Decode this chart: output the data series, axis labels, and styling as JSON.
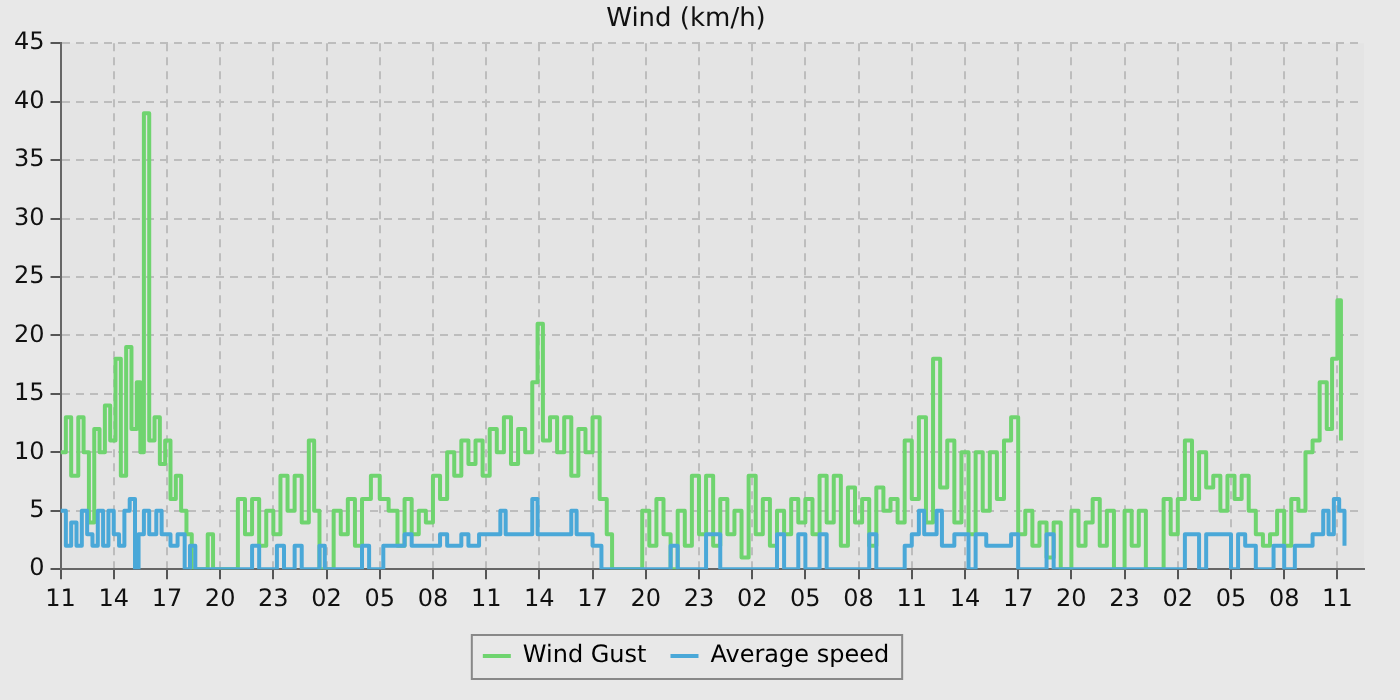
{
  "chart_data": {
    "type": "step",
    "title": "Wind (km/h)",
    "xlim": [
      "--05-01T11:00",
      "--05-04T12:30"
    ],
    "ylim": [
      0,
      45
    ],
    "xticks": [
      {
        "value": "--05-01T11:00",
        "label": "11"
      },
      {
        "value": "--05-01T14:00",
        "label": "14"
      },
      {
        "value": "--05-01T17:00",
        "label": "17"
      },
      {
        "value": "--05-01T20:00",
        "label": "20"
      },
      {
        "value": "--05-01T23:00",
        "label": "23"
      },
      {
        "value": "--05-02T02:00",
        "label": "02"
      },
      {
        "value": "--05-02T05:00",
        "label": "05"
      },
      {
        "value": "--05-02T08:00",
        "label": "08"
      },
      {
        "value": "--05-02T11:00",
        "label": "11"
      },
      {
        "value": "--05-02T14:00",
        "label": "14"
      },
      {
        "value": "--05-02T17:00",
        "label": "17"
      },
      {
        "value": "--05-02T20:00",
        "label": "20"
      },
      {
        "value": "--05-02T23:00",
        "label": "23"
      },
      {
        "value": "--05-03T02:00",
        "label": "02"
      },
      {
        "value": "--05-03T05:00",
        "label": "05"
      },
      {
        "value": "--05-03T08:00",
        "label": "08"
      },
      {
        "value": "--05-03T11:00",
        "label": "11"
      },
      {
        "value": "--05-03T14:00",
        "label": "14"
      },
      {
        "value": "--05-03T17:00",
        "label": "17"
      },
      {
        "value": "--05-03T20:00",
        "label": "20"
      },
      {
        "value": "--05-03T23:00",
        "label": "23"
      },
      {
        "value": "--05-04T02:00",
        "label": "02"
      },
      {
        "value": "--05-04T05:00",
        "label": "05"
      },
      {
        "value": "--05-04T08:00",
        "label": "08"
      },
      {
        "value": "--05-04T11:00",
        "label": "11"
      }
    ],
    "yticks": [
      0,
      5,
      10,
      15,
      20,
      25,
      30,
      35,
      40,
      45
    ],
    "grid": true,
    "legend": "bottom",
    "marker": "none",
    "line_style": "solid",
    "series": [
      {
        "name": "Wind Gust",
        "color": "#6fd46f",
        "x": [
          "--05-01T11:00",
          "--05-01T11:18",
          "--05-01T11:36",
          "--05-01T12:00",
          "--05-01T12:18",
          "--05-01T12:36",
          "--05-01T12:54",
          "--05-01T13:12",
          "--05-01T13:30",
          "--05-01T13:48",
          "--05-01T14:06",
          "--05-01T14:24",
          "--05-01T14:42",
          "--05-01T15:00",
          "--05-01T15:18",
          "--05-01T15:30",
          "--05-01T15:42",
          "--05-01T16:00",
          "--05-01T16:18",
          "--05-01T16:36",
          "--05-01T16:54",
          "--05-01T17:12",
          "--05-01T17:30",
          "--05-01T17:48",
          "--05-01T18:06",
          "--05-01T18:24",
          "--05-01T19:18",
          "--05-01T19:36",
          "--05-01T21:00",
          "--05-01T21:24",
          "--05-01T21:48",
          "--05-01T22:12",
          "--05-01T22:36",
          "--05-01T23:00",
          "--05-01T23:24",
          "--05-01T23:48",
          "--05-02T00:12",
          "--05-02T00:36",
          "--05-02T01:00",
          "--05-02T01:18",
          "--05-02T01:36",
          "--05-02T02:24",
          "--05-02T02:48",
          "--05-02T03:12",
          "--05-02T03:36",
          "--05-02T04:00",
          "--05-02T04:30",
          "--05-02T05:00",
          "--05-02T05:30",
          "--05-02T06:00",
          "--05-02T06:24",
          "--05-02T06:48",
          "--05-02T07:12",
          "--05-02T07:36",
          "--05-02T08:00",
          "--05-02T08:24",
          "--05-02T08:48",
          "--05-02T09:12",
          "--05-02T09:36",
          "--05-02T10:00",
          "--05-02T10:24",
          "--05-02T10:48",
          "--05-02T11:12",
          "--05-02T11:36",
          "--05-02T12:00",
          "--05-02T12:24",
          "--05-02T12:48",
          "--05-02T13:12",
          "--05-02T13:36",
          "--05-02T13:54",
          "--05-02T14:12",
          "--05-02T14:36",
          "--05-02T15:00",
          "--05-02T15:24",
          "--05-02T15:48",
          "--05-02T16:12",
          "--05-02T16:36",
          "--05-02T17:00",
          "--05-02T17:24",
          "--05-02T17:48",
          "--05-02T18:06",
          "--05-02T19:48",
          "--05-02T20:12",
          "--05-02T20:36",
          "--05-02T21:00",
          "--05-02T21:24",
          "--05-02T21:48",
          "--05-02T22:12",
          "--05-02T22:36",
          "--05-02T23:00",
          "--05-02T23:24",
          "--05-02T23:48",
          "--05-03T00:12",
          "--05-03T00:36",
          "--05-03T01:00",
          "--05-03T01:24",
          "--05-03T01:48",
          "--05-03T02:12",
          "--05-03T02:36",
          "--05-03T03:00",
          "--05-03T03:24",
          "--05-03T03:48",
          "--05-03T04:12",
          "--05-03T04:36",
          "--05-03T05:00",
          "--05-03T05:24",
          "--05-03T05:48",
          "--05-03T06:12",
          "--05-03T06:36",
          "--05-03T07:00",
          "--05-03T07:24",
          "--05-03T07:48",
          "--05-03T08:12",
          "--05-03T08:36",
          "--05-03T09:00",
          "--05-03T09:24",
          "--05-03T09:48",
          "--05-03T10:12",
          "--05-03T10:36",
          "--05-03T11:00",
          "--05-03T11:24",
          "--05-03T11:48",
          "--05-03T12:12",
          "--05-03T12:36",
          "--05-03T13:00",
          "--05-03T13:24",
          "--05-03T13:48",
          "--05-03T14:12",
          "--05-03T14:36",
          "--05-03T15:00",
          "--05-03T15:24",
          "--05-03T15:48",
          "--05-03T16:12",
          "--05-03T16:36",
          "--05-03T17:00",
          "--05-03T17:24",
          "--05-03T17:48",
          "--05-03T18:12",
          "--05-03T18:36",
          "--05-03T19:00",
          "--05-03T19:24",
          "--05-03T20:00",
          "--05-03T20:24",
          "--05-03T20:48",
          "--05-03T21:12",
          "--05-03T21:36",
          "--05-03T22:00",
          "--05-03T22:24",
          "--05-03T23:00",
          "--05-03T23:24",
          "--05-03T23:48",
          "--05-04T00:12",
          "--05-04T01:12",
          "--05-04T01:36",
          "--05-04T02:00",
          "--05-04T02:24",
          "--05-04T02:48",
          "--05-04T03:12",
          "--05-04T03:36",
          "--05-04T04:00",
          "--05-04T04:24",
          "--05-04T04:48",
          "--05-04T05:12",
          "--05-04T05:36",
          "--05-04T06:00",
          "--05-04T06:24",
          "--05-04T06:48",
          "--05-04T07:12",
          "--05-04T07:36",
          "--05-04T08:00",
          "--05-04T08:24",
          "--05-04T08:48",
          "--05-04T09:12",
          "--05-04T09:36",
          "--05-04T10:00",
          "--05-04T10:24",
          "--05-04T10:42",
          "--05-04T11:00",
          "--05-04T11:12"
        ],
        "values": [
          10,
          13,
          8,
          13,
          10,
          4,
          12,
          10,
          14,
          11,
          18,
          8,
          19,
          12,
          16,
          10,
          39,
          11,
          13,
          9,
          11,
          6,
          8,
          5,
          3,
          0,
          3,
          0,
          6,
          3,
          6,
          2,
          5,
          3,
          8,
          5,
          8,
          4,
          11,
          5,
          0,
          5,
          3,
          6,
          2,
          6,
          8,
          6,
          5,
          2,
          6,
          3,
          5,
          4,
          8,
          6,
          10,
          8,
          11,
          9,
          11,
          8,
          12,
          10,
          13,
          9,
          12,
          10,
          16,
          21,
          11,
          13,
          10,
          13,
          8,
          12,
          10,
          13,
          6,
          3,
          0,
          5,
          2,
          6,
          3,
          0,
          5,
          2,
          8,
          3,
          8,
          2,
          6,
          3,
          5,
          1,
          8,
          3,
          6,
          2,
          5,
          3,
          6,
          4,
          6,
          3,
          8,
          4,
          8,
          2,
          7,
          4,
          6,
          2,
          7,
          5,
          6,
          4,
          11,
          6,
          13,
          4,
          18,
          7,
          11,
          4,
          10,
          3,
          10,
          5,
          10,
          6,
          11,
          13,
          3,
          5,
          2,
          4,
          1,
          4,
          0,
          5,
          2,
          4,
          6,
          2,
          5,
          0,
          5,
          2,
          5,
          0,
          6,
          3,
          6,
          11,
          6,
          10,
          7,
          8,
          5,
          8,
          6,
          8,
          5,
          3,
          2,
          3,
          5,
          2,
          6,
          5,
          10,
          11,
          16,
          12,
          18,
          23,
          11
        ]
      },
      {
        "name": "Average speed",
        "color": "#4aa8d8",
        "x": [
          "--05-01T11:00",
          "--05-01T11:18",
          "--05-01T11:36",
          "--05-01T11:54",
          "--05-01T12:12",
          "--05-01T12:30",
          "--05-01T12:48",
          "--05-01T13:06",
          "--05-01T13:24",
          "--05-01T13:42",
          "--05-01T14:00",
          "--05-01T14:18",
          "--05-01T14:36",
          "--05-01T14:54",
          "--05-01T15:12",
          "--05-01T15:24",
          "--05-01T15:42",
          "--05-01T16:00",
          "--05-01T16:24",
          "--05-01T16:42",
          "--05-01T17:12",
          "--05-01T17:36",
          "--05-01T18:00",
          "--05-01T18:18",
          "--05-01T18:36",
          "--05-01T21:48",
          "--05-01T22:12",
          "--05-01T23:12",
          "--05-01T23:36",
          "--05-02T00:12",
          "--05-02T00:36",
          "--05-02T01:36",
          "--05-02T01:54",
          "--05-02T04:00",
          "--05-02T04:24",
          "--05-02T05:12",
          "--05-02T06:24",
          "--05-02T06:48",
          "--05-02T08:24",
          "--05-02T08:48",
          "--05-02T09:36",
          "--05-02T10:00",
          "--05-02T10:36",
          "--05-02T11:24",
          "--05-02T11:48",
          "--05-02T12:06",
          "--05-02T12:36",
          "--05-02T13:00",
          "--05-02T13:36",
          "--05-02T13:54",
          "--05-02T14:24",
          "--05-02T15:48",
          "--05-02T16:06",
          "--05-02T17:00",
          "--05-02T17:30",
          "--05-02T21:24",
          "--05-02T21:48",
          "--05-02T23:24",
          "--05-03T00:12",
          "--05-03T03:24",
          "--05-03T03:48",
          "--05-03T04:36",
          "--05-03T05:00",
          "--05-03T05:48",
          "--05-03T06:12",
          "--05-03T08:36",
          "--05-03T09:00",
          "--05-03T10:36",
          "--05-03T11:00",
          "--05-03T11:24",
          "--05-03T11:42",
          "--05-03T12:24",
          "--05-03T12:42",
          "--05-03T13:24",
          "--05-03T14:12",
          "--05-03T14:36",
          "--05-03T15:12",
          "--05-03T16:36",
          "--05-03T17:00",
          "--05-03T18:36",
          "--05-03T19:00",
          "--05-04T02:24",
          "--05-04T03:12",
          "--05-04T03:36",
          "--05-04T05:00",
          "--05-04T05:24",
          "--05-04T05:48",
          "--05-04T06:24",
          "--05-04T07:24",
          "--05-04T08:00",
          "--05-04T08:36",
          "--05-04T09:36",
          "--05-04T10:12",
          "--05-04T10:30",
          "--05-04T10:48",
          "--05-04T11:06",
          "--05-04T11:24"
        ],
        "values": [
          5,
          2,
          4,
          2,
          5,
          3,
          2,
          5,
          2,
          5,
          3,
          2,
          5,
          6,
          0,
          3,
          5,
          3,
          5,
          3,
          2,
          3,
          0,
          2,
          0,
          2,
          0,
          2,
          0,
          2,
          0,
          2,
          0,
          2,
          0,
          2,
          3,
          2,
          3,
          2,
          3,
          2,
          3,
          3,
          5,
          3,
          3,
          3,
          6,
          3,
          3,
          5,
          3,
          2,
          0,
          2,
          0,
          3,
          0,
          3,
          0,
          3,
          0,
          3,
          0,
          3,
          0,
          2,
          3,
          5,
          3,
          5,
          2,
          3,
          0,
          3,
          2,
          3,
          0,
          3,
          0,
          3,
          0,
          3,
          0,
          3,
          2,
          0,
          2,
          0,
          2,
          3,
          5,
          3,
          6,
          5,
          2
        ]
      }
    ]
  }
}
